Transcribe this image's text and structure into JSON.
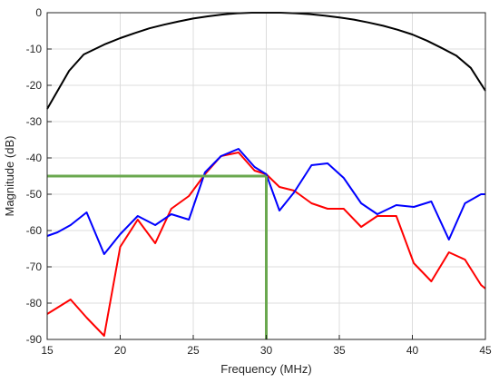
{
  "chart_data": {
    "type": "line",
    "title": "",
    "xlabel": "Frequency (MHz)",
    "ylabel": "Magnitude (dB)",
    "xlim": [
      15,
      45
    ],
    "ylim": [
      -90,
      0
    ],
    "xticks": [
      15,
      20,
      25,
      30,
      35,
      40,
      45
    ],
    "yticks": [
      0,
      -10,
      -20,
      -30,
      -40,
      -50,
      -60,
      -70,
      -80,
      -90
    ],
    "grid": true,
    "series": [
      {
        "color": "#000000",
        "x": [
          15,
          16.5,
          17.5,
          19,
          20,
          21,
          22,
          23,
          24,
          25,
          26,
          27,
          28,
          29,
          30,
          31,
          32,
          33,
          34,
          35,
          36,
          37,
          38,
          39,
          40,
          41,
          42,
          43,
          44,
          45
        ],
        "y": [
          -26.5,
          -16,
          -11.5,
          -8.6,
          -7,
          -5.6,
          -4.3,
          -3.3,
          -2.4,
          -1.6,
          -1.0,
          -0.5,
          -0.15,
          0,
          0,
          0,
          -0.15,
          -0.4,
          -0.8,
          -1.3,
          -1.9,
          -2.7,
          -3.6,
          -4.7,
          -6,
          -7.7,
          -9.7,
          -11.8,
          -15.2,
          -21.5
        ]
      },
      {
        "color": "#ff0000",
        "x": [
          15,
          16.6,
          17.7,
          18.9,
          20,
          21.2,
          22.4,
          23.5,
          24.7,
          25.8,
          26.9,
          28.1,
          29.2,
          30,
          30.9,
          31.9,
          33.1,
          34.2,
          35.3,
          36.5,
          37.6,
          38.9,
          40.1,
          41.3,
          42.5,
          43.6,
          44.7,
          45
        ],
        "y": [
          -83,
          -79,
          -84,
          -89,
          -64.5,
          -57,
          -63.5,
          -54,
          -50.5,
          -44.5,
          -39.5,
          -38.5,
          -43.5,
          -44.5,
          -48,
          -49,
          -52.5,
          -54,
          -54,
          -59,
          -56,
          -56,
          -69,
          -74,
          -66,
          -68,
          -75,
          -76
        ]
      },
      {
        "color": "#0000ff",
        "x": [
          15,
          15.7,
          16.6,
          17.7,
          18.9,
          20,
          21.2,
          22.4,
          23.5,
          24.7,
          25.8,
          26.9,
          28.1,
          29.2,
          30,
          30.9,
          31.9,
          33.1,
          34.2,
          35.3,
          36.5,
          37.6,
          38.9,
          40.1,
          41.3,
          42.5,
          43.6,
          44.7,
          45
        ],
        "y": [
          -61.5,
          -60.5,
          -58.5,
          -55,
          -66.5,
          -61,
          -56,
          -58.5,
          -55.5,
          -57,
          -44,
          -39.5,
          -37.5,
          -42.5,
          -44.5,
          -54.5,
          -49.5,
          -42,
          -41.5,
          -45.5,
          -52.5,
          -55.5,
          -53,
          -53.5,
          -52,
          -62.5,
          -52.5,
          -50,
          -50
        ]
      }
    ],
    "markers": {
      "color": "#6aa84f",
      "y_level": -45,
      "x_level": 30
    }
  }
}
